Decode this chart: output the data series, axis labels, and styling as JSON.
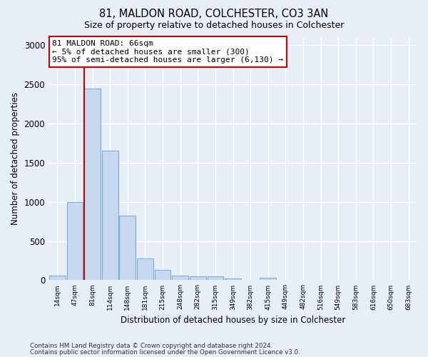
{
  "title1": "81, MALDON ROAD, COLCHESTER, CO3 3AN",
  "title2": "Size of property relative to detached houses in Colchester",
  "xlabel": "Distribution of detached houses by size in Colchester",
  "ylabel": "Number of detached properties",
  "bar_labels": [
    "14sqm",
    "47sqm",
    "81sqm",
    "114sqm",
    "148sqm",
    "181sqm",
    "215sqm",
    "248sqm",
    "282sqm",
    "315sqm",
    "349sqm",
    "382sqm",
    "415sqm",
    "449sqm",
    "482sqm",
    "516sqm",
    "549sqm",
    "583sqm",
    "616sqm",
    "650sqm",
    "683sqm"
  ],
  "bar_values": [
    60,
    1000,
    2450,
    1650,
    825,
    280,
    130,
    55,
    50,
    45,
    25,
    0,
    30,
    0,
    0,
    0,
    0,
    0,
    0,
    0,
    0
  ],
  "bar_color": "#c5d8ef",
  "bar_edge_color": "#7bafd4",
  "red_line_color": "#cc0000",
  "annotation_line1": "81 MALDON ROAD: 66sqm",
  "annotation_line2": "← 5% of detached houses are smaller (300)",
  "annotation_line3": "95% of semi-detached houses are larger (6,130) →",
  "annotation_box_facecolor": "#ffffff",
  "annotation_box_edgecolor": "#cc0000",
  "ylim": [
    0,
    3100
  ],
  "yticks": [
    0,
    500,
    1000,
    1500,
    2000,
    2500,
    3000
  ],
  "background_color": "#e8eef6",
  "grid_color": "#ffffff",
  "footer1": "Contains HM Land Registry data © Crown copyright and database right 2024.",
  "footer2": "Contains public sector information licensed under the Open Government Licence v3.0."
}
